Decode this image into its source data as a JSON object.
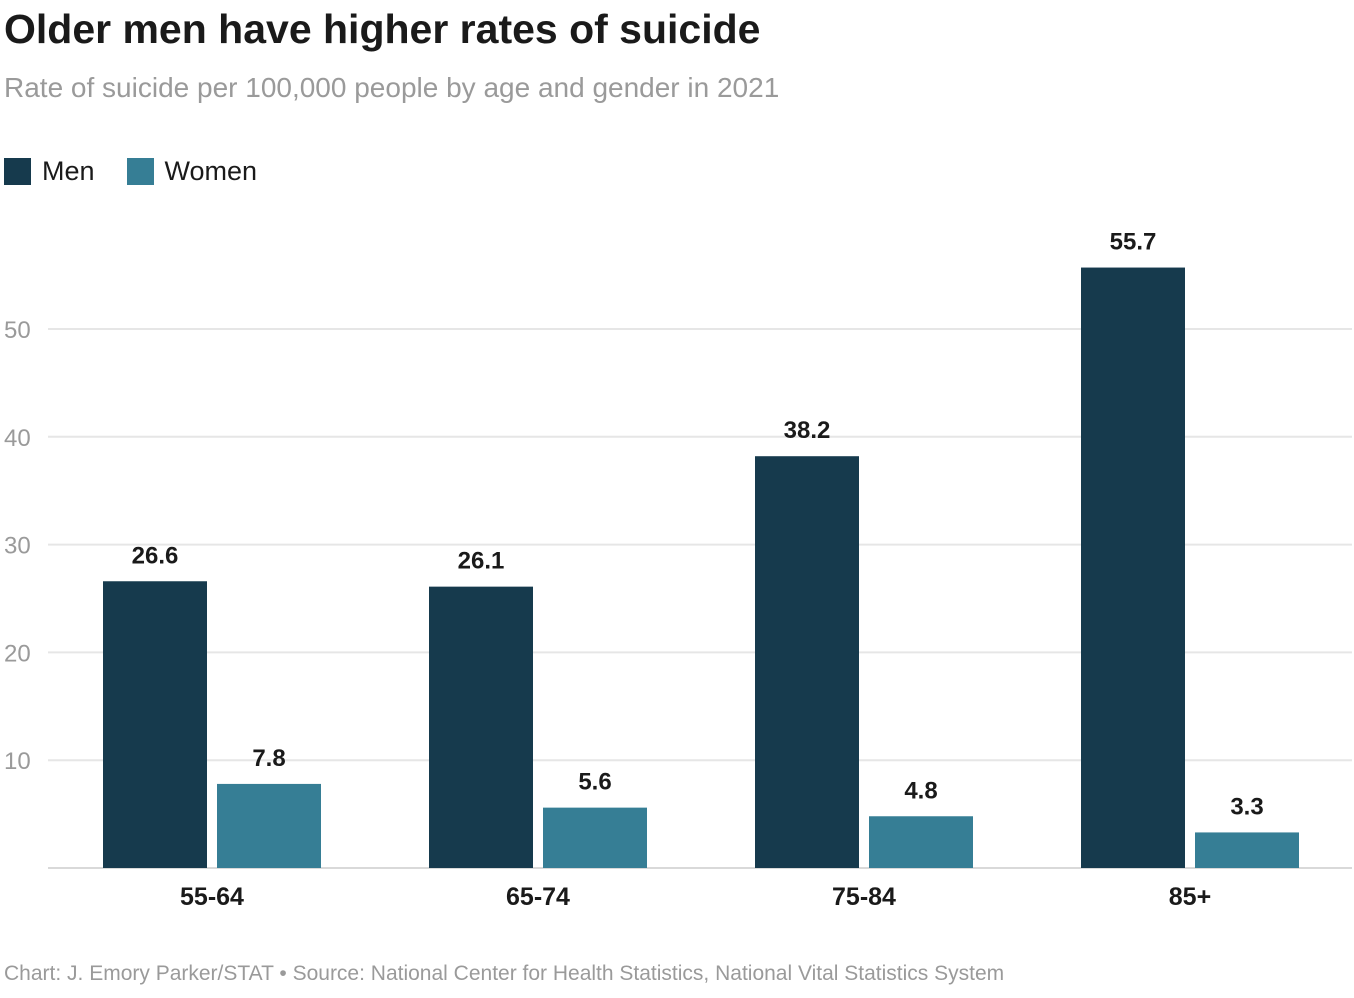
{
  "title": "Older men have higher rates of suicide",
  "subtitle": "Rate of suicide per 100,000 people by age and gender in 2021",
  "footer": "Chart: J. Emory Parker/STAT • Source: National Center for Health Statistics, National Vital Statistics System",
  "colors": {
    "men": "#163a4d",
    "women": "#367e95",
    "grid": "#e6e6e6",
    "axis_text": "#9a9a9a",
    "label_text": "#1a1a1a"
  },
  "chart_data": {
    "type": "bar",
    "categories": [
      "55-64",
      "65-74",
      "75-84",
      "85+"
    ],
    "series": [
      {
        "name": "Men",
        "values": [
          26.6,
          26.1,
          38.2,
          55.7
        ]
      },
      {
        "name": "Women",
        "values": [
          7.8,
          5.6,
          4.8,
          3.3
        ]
      }
    ],
    "ylim": [
      0,
      60
    ],
    "yticks": [
      10,
      20,
      30,
      40,
      50
    ],
    "grid": true,
    "legend": "top-left",
    "data_labels": true
  }
}
